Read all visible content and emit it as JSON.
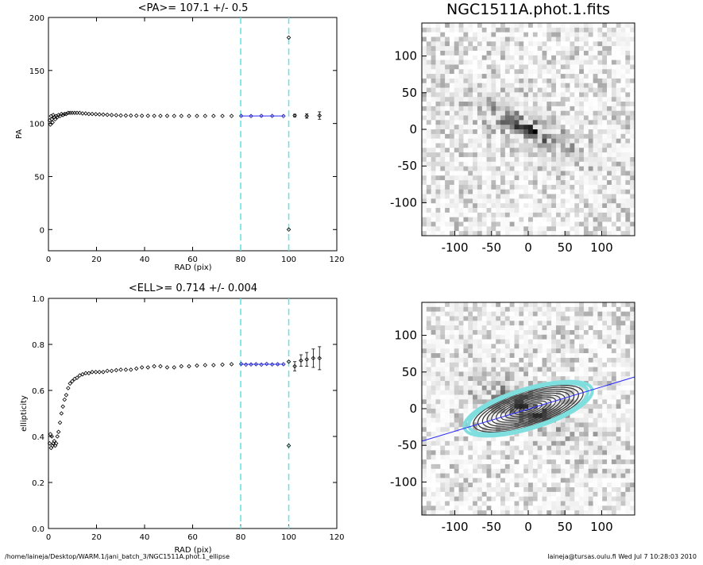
{
  "chart_data": [
    {
      "type": "scatter",
      "title": "<PA>= 107.1 +/-   0.5",
      "xlabel": "RAD (pix)",
      "ylabel": "PA",
      "xlim": [
        0,
        120
      ],
      "ylim": [
        -20,
        200
      ],
      "xticks": [
        0,
        20,
        40,
        60,
        80,
        100,
        120
      ],
      "yticks": [
        0,
        50,
        100,
        150,
        200
      ],
      "grid": false,
      "vlines": [
        80,
        100
      ],
      "series": [
        {
          "x": [
            0.5,
            0.8,
            1.1,
            1.4,
            1.7,
            2.0,
            2.4,
            2.8,
            3.2,
            3.7,
            4.2,
            4.8,
            5.4,
            6.0,
            6.7,
            7.4,
            8.2,
            9.0,
            9.9,
            10.9,
            11.9,
            13.0,
            14.2,
            15.5,
            16.8,
            18.2,
            19.7,
            21.2,
            22.8,
            24.5,
            26.3,
            28.2,
            30.1,
            32.2,
            34.3,
            36.6,
            38.9,
            41.4,
            44.0,
            46.6,
            49.4,
            52.3,
            55.3,
            58.5,
            61.8,
            65.2,
            68.7,
            72.4,
            76.2
          ],
          "y": [
            103,
            99,
            107,
            104,
            101,
            108,
            106,
            104,
            107,
            106,
            108,
            107,
            109,
            108,
            109,
            109,
            110,
            110,
            110,
            110,
            110,
            110,
            109.5,
            109.5,
            109,
            109,
            108.8,
            108.6,
            108.4,
            108.2,
            108,
            107.8,
            107.6,
            107.5,
            107.5,
            107.4,
            107.3,
            107.3,
            107.2,
            107.2,
            107.2,
            107.1,
            107.1,
            107.1,
            107.1,
            107.1,
            107.1,
            107.1,
            107.1
          ]
        },
        {
          "x": [
            80.2,
            84.3,
            88.6,
            93.1,
            97.8
          ],
          "y": [
            107.1,
            107.0,
            107.2,
            107.1,
            107.0
          ]
        },
        {
          "x": [
            100,
            100,
            102.5,
            107.5,
            112.8
          ],
          "y": [
            181,
            0,
            107.5,
            107,
            107.5
          ],
          "err": [
            0,
            0,
            1.2,
            2.0,
            3.5
          ]
        }
      ],
      "fit": {
        "x": [
          80,
          98
        ],
        "y": [
          107.1,
          107.1
        ]
      }
    },
    {
      "type": "scatter",
      "title": "<ELL>= 0.714 +/-  0.004",
      "xlabel": "RAD (pix)",
      "ylabel": "ellipticity",
      "xlim": [
        0,
        120
      ],
      "ylim": [
        0.0,
        1.0
      ],
      "xticks": [
        0,
        20,
        40,
        60,
        80,
        100,
        120
      ],
      "yticks": [
        "0.0",
        "0.2",
        "0.4",
        "0.6",
        "0.8",
        "1.0"
      ],
      "grid": false,
      "vlines": [
        80,
        100
      ],
      "series": [
        {
          "x": [
            0.5,
            0.8,
            1.1,
            1.4,
            1.7,
            2.0,
            2.4,
            2.8,
            3.2,
            3.7,
            4.2,
            4.8,
            5.4,
            6.0,
            6.7,
            7.4,
            8.2,
            9.0,
            9.9,
            10.9,
            11.9,
            13.0,
            14.2,
            15.5,
            16.8,
            18.2,
            19.7,
            21.2,
            22.8,
            24.5,
            26.3,
            28.2,
            30.1,
            32.2,
            34.3,
            36.6,
            38.9,
            41.4,
            44.0,
            46.6,
            49.4,
            52.3,
            55.3,
            58.5,
            61.8,
            65.2,
            68.7,
            72.4,
            76.2
          ],
          "y": [
            0.37,
            0.41,
            0.35,
            0.4,
            0.36,
            0.37,
            0.38,
            0.36,
            0.37,
            0.4,
            0.42,
            0.46,
            0.5,
            0.53,
            0.56,
            0.58,
            0.61,
            0.63,
            0.64,
            0.65,
            0.655,
            0.665,
            0.67,
            0.675,
            0.675,
            0.68,
            0.68,
            0.68,
            0.68,
            0.685,
            0.685,
            0.688,
            0.69,
            0.69,
            0.69,
            0.695,
            0.7,
            0.7,
            0.705,
            0.705,
            0.7,
            0.7,
            0.705,
            0.705,
            0.708,
            0.71,
            0.71,
            0.712,
            0.714
          ]
        },
        {
          "x": [
            80.2,
            82.2,
            84.3,
            86.4,
            88.6,
            90.8,
            93.1,
            95.4,
            97.8
          ],
          "y": [
            0.715,
            0.712,
            0.713,
            0.714,
            0.712,
            0.715,
            0.713,
            0.714,
            0.714
          ]
        },
        {
          "x": [
            100,
            100,
            102.5,
            105.1,
            107.5,
            110.2,
            112.8
          ],
          "y": [
            0.725,
            0.36,
            0.705,
            0.73,
            0.735,
            0.74,
            0.74
          ],
          "err": [
            0,
            0,
            0.02,
            0.025,
            0.03,
            0.04,
            0.05
          ]
        }
      ],
      "fit": {
        "x": [
          80,
          98
        ],
        "y": [
          0.714,
          0.714
        ]
      }
    }
  ],
  "image_panel_top": {
    "title": "NGC1511A.phot.1.fits",
    "xticks": [
      "-100",
      "-50",
      "0",
      "50",
      "100"
    ],
    "yticks": [
      "100",
      "50",
      "0",
      "-50",
      "-100"
    ]
  },
  "image_panel_bottom": {
    "xticks": [
      "-100",
      "-50",
      "0",
      "50",
      "100"
    ],
    "yticks": [
      "100",
      "50",
      "0",
      "-50",
      "-100"
    ]
  },
  "footer": {
    "left": "/home/laineja/Desktop/WARM.1/jani_batch_3/NGC1511A.phot.1_ellipse",
    "right": "laineja@tursas.oulu.fi  Wed Jul  7 10:28:03 2010"
  },
  "colors": {
    "vline": "#5fe3e3",
    "fit": "#2b2bff",
    "selected": "#1a1aa0",
    "contour": "#333333",
    "ellipse_outer": "#7fdede"
  }
}
